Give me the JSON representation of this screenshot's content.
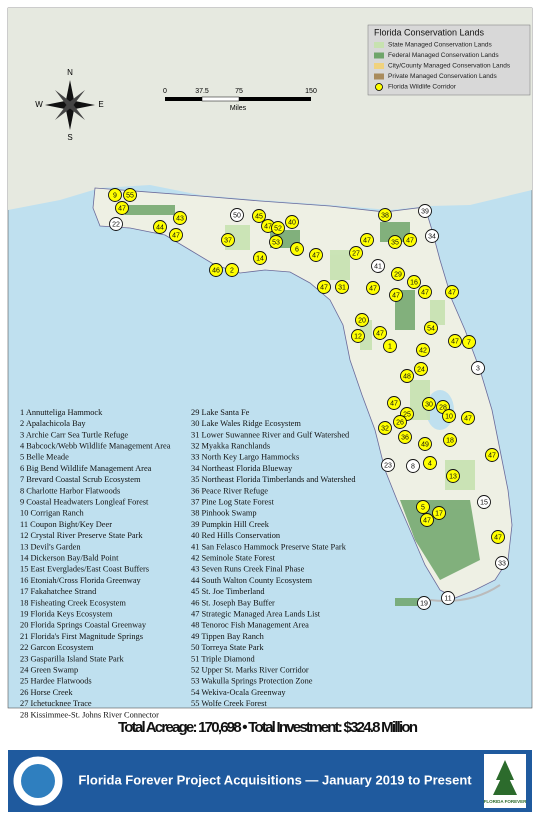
{
  "legend": {
    "title": "Florida Conservation Lands",
    "items": [
      {
        "label": "State Managed Conservation Lands",
        "color": "#c7e2b0"
      },
      {
        "label": "Federal Managed Conservation Lands",
        "color": "#6fa56a"
      },
      {
        "label": "City/County Managed Conservation Lands",
        "color": "#f0d27e"
      },
      {
        "label": "Private Managed Conservation Lands",
        "color": "#a98b5c"
      },
      {
        "label": "Florida Wildlife Corridor",
        "color": "#ffff00"
      }
    ]
  },
  "scale": {
    "ticks": [
      "0",
      "37.5",
      "75",
      "150"
    ],
    "unit": "Miles"
  },
  "compass": {
    "n": "N",
    "s": "S",
    "e": "E",
    "w": "W"
  },
  "markers": [
    {
      "label": "9",
      "corridor": true
    },
    {
      "label": "55",
      "corridor": true
    },
    {
      "label": "47",
      "corridor": true
    },
    {
      "label": "22",
      "corridor": false
    },
    {
      "label": "43",
      "corridor": true
    },
    {
      "label": "44",
      "corridor": true
    },
    {
      "label": "47",
      "corridor": true
    },
    {
      "label": "50",
      "corridor": false
    },
    {
      "label": "45",
      "corridor": true
    },
    {
      "label": "47",
      "corridor": true
    },
    {
      "label": "52",
      "corridor": true
    },
    {
      "label": "40",
      "corridor": true
    },
    {
      "label": "37",
      "corridor": true
    },
    {
      "label": "53",
      "corridor": true
    },
    {
      "label": "14",
      "corridor": true
    },
    {
      "label": "46",
      "corridor": true
    },
    {
      "label": "2",
      "corridor": true
    },
    {
      "label": "6",
      "corridor": true
    },
    {
      "label": "47",
      "corridor": true
    },
    {
      "label": "38",
      "corridor": true
    },
    {
      "label": "39",
      "corridor": false
    },
    {
      "label": "34",
      "corridor": false
    },
    {
      "label": "47",
      "corridor": true
    },
    {
      "label": "35",
      "corridor": true
    },
    {
      "label": "47",
      "corridor": true
    },
    {
      "label": "27",
      "corridor": true
    },
    {
      "label": "41",
      "corridor": false
    },
    {
      "label": "29",
      "corridor": true
    },
    {
      "label": "16",
      "corridor": true
    },
    {
      "label": "47",
      "corridor": true
    },
    {
      "label": "31",
      "corridor": true
    },
    {
      "label": "47",
      "corridor": true
    },
    {
      "label": "47",
      "corridor": true
    },
    {
      "label": "47",
      "corridor": true
    },
    {
      "label": "47",
      "corridor": true
    },
    {
      "label": "20",
      "corridor": true
    },
    {
      "label": "12",
      "corridor": true
    },
    {
      "label": "47",
      "corridor": true
    },
    {
      "label": "1",
      "corridor": true
    },
    {
      "label": "54",
      "corridor": true
    },
    {
      "label": "47",
      "corridor": true
    },
    {
      "label": "7",
      "corridor": true
    },
    {
      "label": "42",
      "corridor": true
    },
    {
      "label": "3",
      "corridor": false
    },
    {
      "label": "24",
      "corridor": true
    },
    {
      "label": "48",
      "corridor": true
    },
    {
      "label": "47",
      "corridor": true
    },
    {
      "label": "30",
      "corridor": true
    },
    {
      "label": "28",
      "corridor": true
    },
    {
      "label": "25",
      "corridor": true
    },
    {
      "label": "10",
      "corridor": true
    },
    {
      "label": "32",
      "corridor": true
    },
    {
      "label": "26",
      "corridor": true
    },
    {
      "label": "36",
      "corridor": true
    },
    {
      "label": "49",
      "corridor": true
    },
    {
      "label": "18",
      "corridor": true
    },
    {
      "label": "47",
      "corridor": true
    },
    {
      "label": "47",
      "corridor": true
    },
    {
      "label": "23",
      "corridor": false
    },
    {
      "label": "8",
      "corridor": false
    },
    {
      "label": "4",
      "corridor": true
    },
    {
      "label": "13",
      "corridor": true
    },
    {
      "label": "15",
      "corridor": false
    },
    {
      "label": "5",
      "corridor": true
    },
    {
      "label": "17",
      "corridor": true
    },
    {
      "label": "47",
      "corridor": true
    },
    {
      "label": "47",
      "corridor": true
    },
    {
      "label": "33",
      "corridor": false
    },
    {
      "label": "19",
      "corridor": false
    },
    {
      "label": "11",
      "corridor": false
    }
  ],
  "projects": [
    "1 Annutteliga Hammock",
    "2 Apalachicola Bay",
    "3 Archie Carr Sea Turtle Refuge",
    "4 Babcock/Webb Wildlife Management Area",
    "5 Belle Meade",
    "6 Big Bend Wildlife Management Area",
    "7 Brevard Coastal Scrub Ecosystem",
    "8 Charlotte Harbor Flatwoods",
    "9 Coastal Headwaters Longleaf Forest",
    "10 Corrigan Ranch",
    "11 Coupon Bight/Key Deer",
    "12 Crystal River Preserve State Park",
    "13 Devil's Garden",
    "14 Dickerson Bay/Bald Point",
    "15 East Everglades/East Coast Buffers",
    "16 Etoniah/Cross Florida Greenway",
    "17 Fakahatchee Strand",
    "18 Fisheating Creek Ecosystem",
    "19 Florida Keys Ecosystem",
    "20 Florida Springs Coastal Greenway",
    "21 Florida's First Magnitude Springs",
    "22 Garcon Ecosystem",
    "23 Gasparilla Island State Park",
    "24 Green Swamp",
    "25 Hardee Flatwoods",
    "26 Horse Creek",
    "27 Ichetucknee Trace",
    "28 Kissimmee-St. Johns River Connector",
    "29 Lake Santa Fe",
    "30 Lake Wales Ridge Ecosystem",
    "31 Lower Suwannee River and Gulf Watershed",
    "32 Myakka Ranchlands",
    "33 North Key Largo Hammocks",
    "34 Northeast Florida Blueway",
    "35 Northeast Florida Timberlands and Watershed",
    "36 Peace River Refuge",
    "37 Pine Log State Forest",
    "38 Pinhook Swamp",
    "39 Pumpkin Hill Creek",
    "40 Red Hills Conservation",
    "41 San Felasco Hammock Preserve State Park",
    "42 Seminole State Forest",
    "43 Seven Runs Creek Final Phase",
    "44 South Walton County Ecosystem",
    "45 St. Joe Timberland",
    "46 St. Joseph Bay Buffer",
    "47 Strategic Managed Area Lands List",
    "48 Tenoroc Fish Management Area",
    "49 Tippen Bay Ranch",
    "50 Torreya State Park",
    "51 Triple Diamond",
    "52 Upper St. Marks River Corridor",
    "53 Wakulla Springs Protection Zone",
    "54 Wekiva-Ocala Greenway",
    "55 Wolfe Creek Forest"
  ],
  "totals": "Total Acreage:  170,698 • Total Investment:  $324.8 Million",
  "footer": {
    "title": "Florida Forever Project Acquisitions — January 2019 to Present",
    "logo": "FLORIDA FOREVER"
  }
}
